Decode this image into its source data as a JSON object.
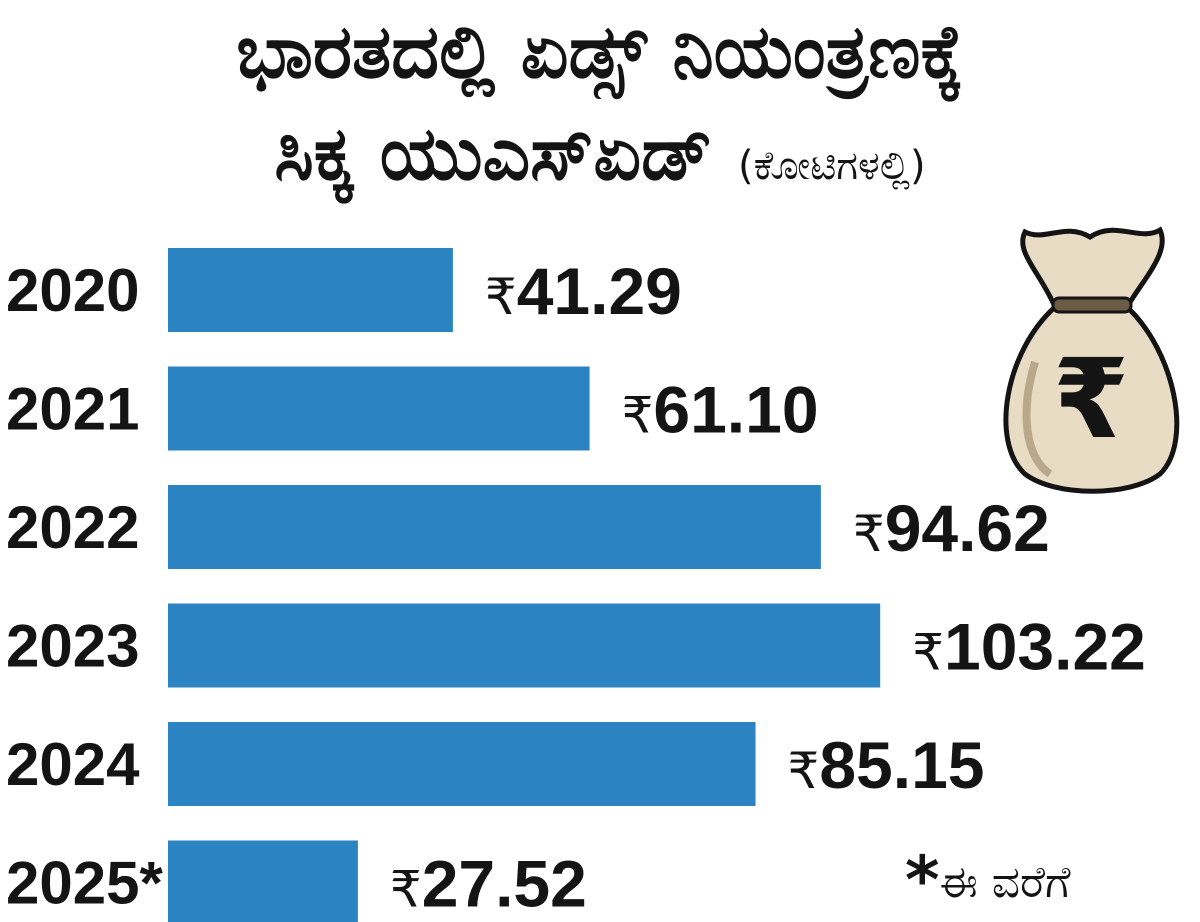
{
  "header": {
    "line1": "ಭಾರತದಲ್ಲಿ ಏಡ್ಸ್ ನಿಯಂತ್ರಣಕ್ಕೆ",
    "line2": "ಸಿಕ್ಕ ಯುಎಸ್‌ಏಡ್",
    "unit": "(ಕೋಟಿಗಳಲ್ಲಿ)"
  },
  "currency_symbol": "₹",
  "footnote": {
    "marker": "*",
    "text": "ಈ ವರೆಗೆ"
  },
  "icon": {
    "name": "rupee-money-bag-icon",
    "symbol": "₹"
  },
  "colors": {
    "bar": "#2b83c1",
    "text": "#141414",
    "bag": "#e9dcc5"
  },
  "chart_data": {
    "type": "bar",
    "orientation": "horizontal",
    "title": "ಭಾರತದಲ್ಲಿ ಏಡ್ಸ್ ನಿಯಂತ್ರಣಕ್ಕೆ ಸಿಕ್ಕ ಯುಎಸ್‌ಏಡ್",
    "subtitle": "(ಕೋಟಿಗಳಲ್ಲಿ)",
    "categories": [
      "2020",
      "2021",
      "2022",
      "2023",
      "2024",
      "2025*"
    ],
    "values": [
      41.29,
      61.1,
      94.62,
      103.22,
      85.15,
      27.52
    ],
    "value_labels": [
      "41.29",
      "61.10",
      "94.62",
      "103.22",
      "85.15",
      "27.52"
    ],
    "xlabel": "",
    "ylabel": "",
    "grid": false,
    "legend": "none"
  }
}
